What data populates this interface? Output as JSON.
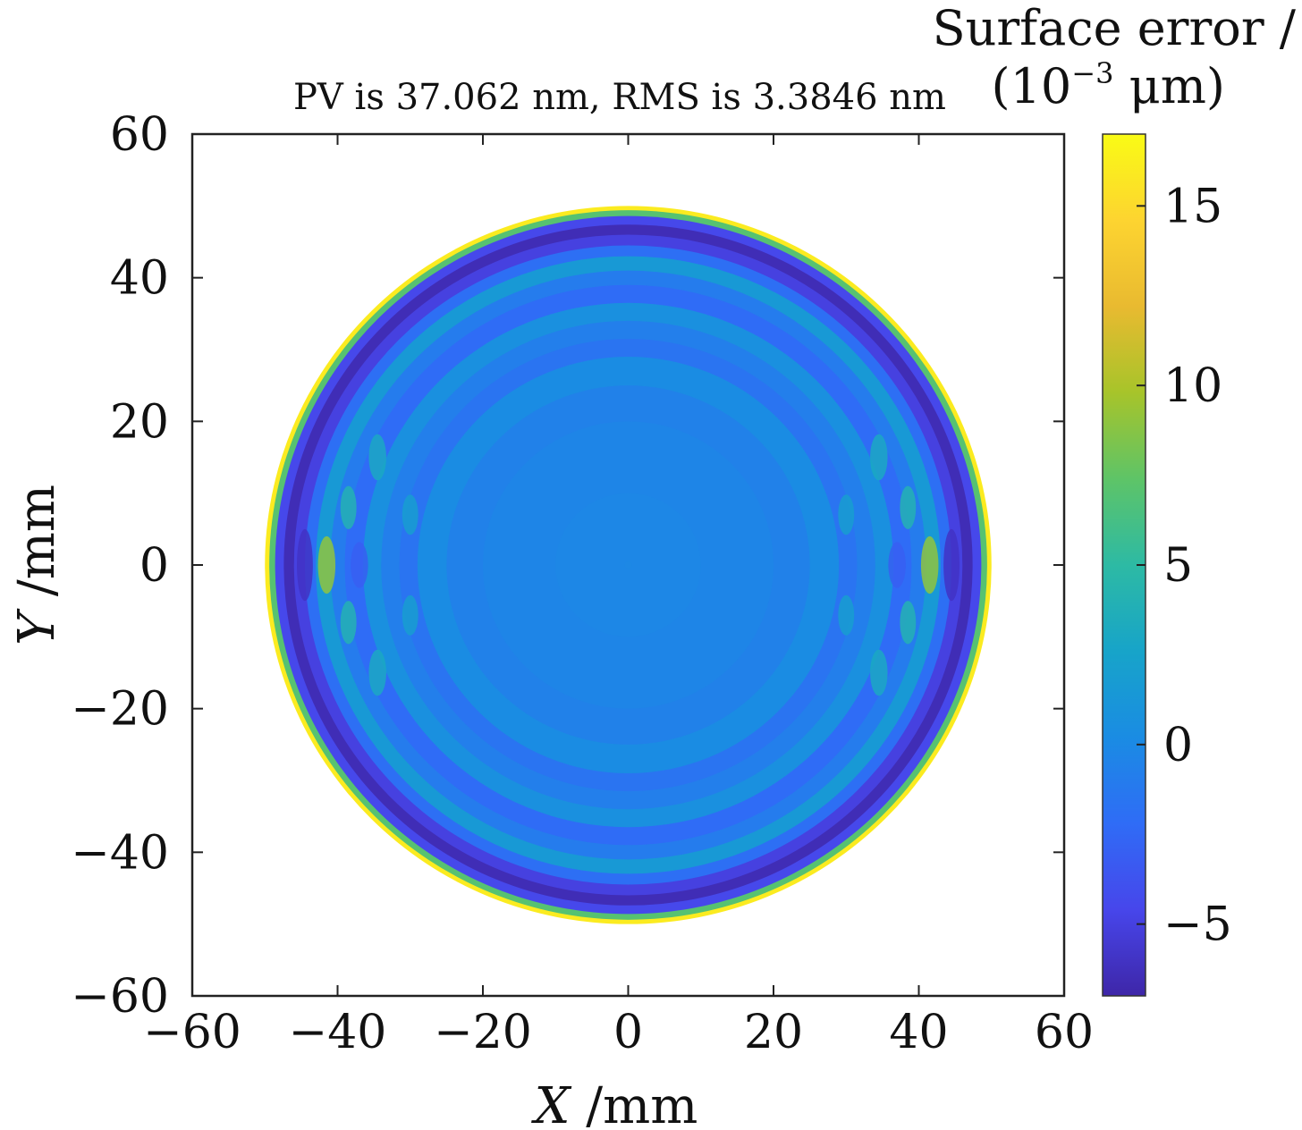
{
  "chart_data": {
    "type": "heatmap",
    "title": "PV is 37.062 nm, RMS is 3.3846 nm",
    "xlabel_var": "X",
    "xlabel_unit": " /mm",
    "ylabel_var": "Y",
    "ylabel_unit": " /mm",
    "xlim": [
      -60,
      60
    ],
    "ylim": [
      -60,
      60
    ],
    "xticks": [
      -60,
      -40,
      -20,
      0,
      20,
      40,
      60
    ],
    "yticks": [
      -60,
      -40,
      -20,
      0,
      20,
      40,
      60
    ],
    "xtick_labels": [
      "−60",
      "−40",
      "−20",
      "0",
      "20",
      "40",
      "60"
    ],
    "ytick_labels": [
      "−60",
      "−40",
      "−20",
      "0",
      "20",
      "40",
      "60"
    ],
    "aperture_radius_mm": 50,
    "surface_description": "circular aperture; mostly flat near 0 with ring ripples, dark (≈−6) band near the edge and bright (≈+17) rim; lobed ripples near x=±40",
    "colorbar": {
      "title_line1": "Surface error /",
      "title_line2_prefix": "(10",
      "title_line2_exp": "−3",
      "title_line2_suffix": " μm)",
      "range": [
        -7,
        17
      ],
      "ticks": [
        -5,
        0,
        5,
        10,
        15
      ],
      "tick_labels": [
        "−5",
        "0",
        "5",
        "10",
        "15"
      ],
      "colormap": "parula",
      "colors": [
        "#3e26a8",
        "#4746eb",
        "#2f6cf6",
        "#1a8ce3",
        "#17a4c9",
        "#2dbaa4",
        "#5ec467",
        "#a7c42a",
        "#e9ba30",
        "#fdd430",
        "#f9fb15"
      ]
    }
  }
}
